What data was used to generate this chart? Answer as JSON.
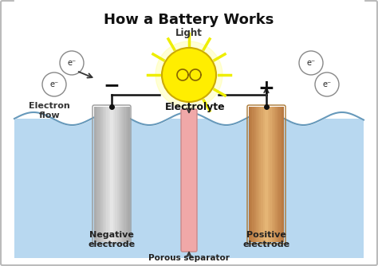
{
  "title": "How a Battery Works",
  "title_fontsize": 13,
  "background_color": "#ffffff",
  "water_color": "#b8d8f0",
  "neg_electrode_color_l": "#aaaaaa",
  "neg_electrode_color_r": "#e8e8e8",
  "pos_electrode_color_l": "#b87840",
  "pos_electrode_color_r": "#e8b878",
  "separator_color": "#f0a8a8",
  "bulb_yellow": "#ffee00",
  "bulb_glow": "#ffff88",
  "wire_color": "#111111",
  "label_neg_electrode": "Negative\nelectrode",
  "label_pos_electrode": "Positive\nelectrode",
  "label_electrolyte": "Electrolyte",
  "label_porous": "Porous separator",
  "label_electron_flow": "Electron\nflow",
  "label_light": "Light",
  "label_neg": "−",
  "label_pos": "+",
  "label_eminus": "e⁻"
}
